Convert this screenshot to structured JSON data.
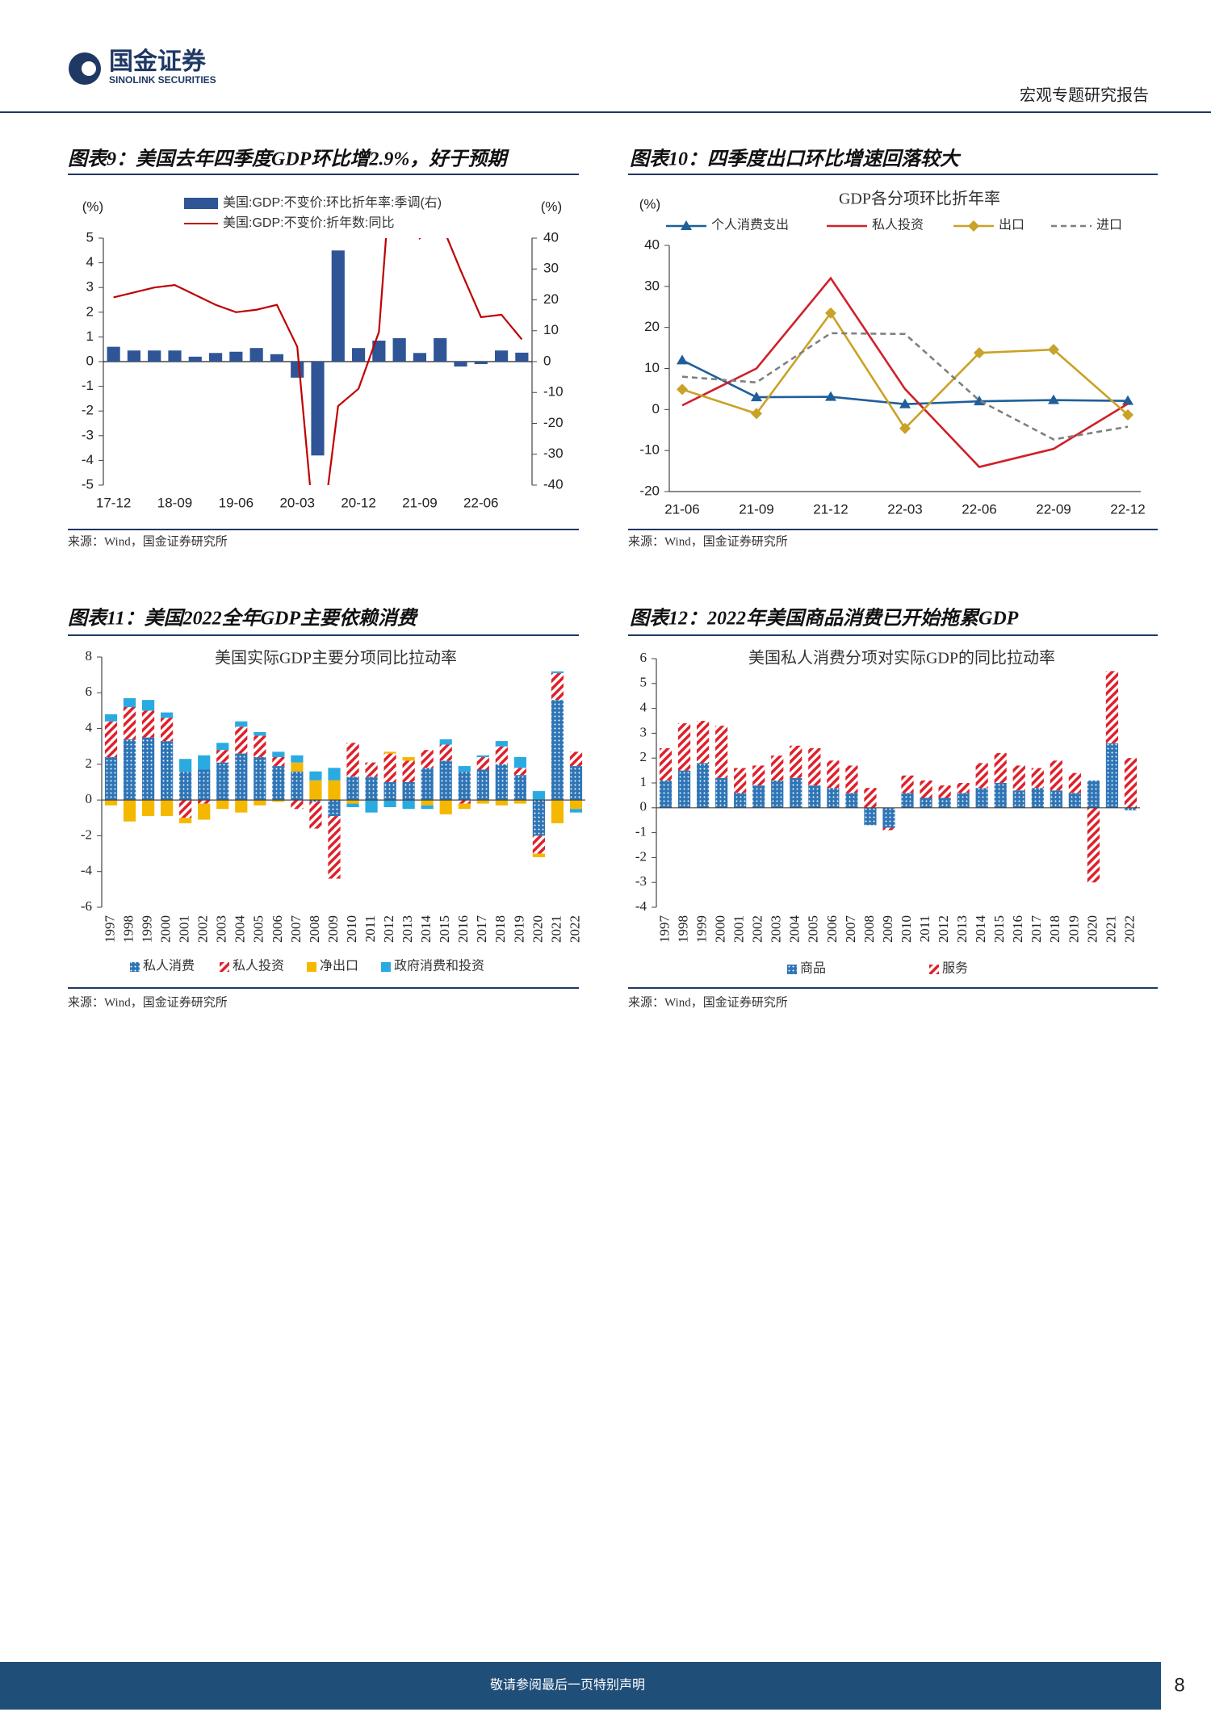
{
  "header": {
    "company_cn": "国金证券",
    "company_en": "SINOLINK SECURITIES",
    "report_type": "宏观专题研究报告"
  },
  "chart_data": [
    {
      "type": "combo",
      "title": "图表9：美国去年四季度GDP环比增2.9%，好于预期",
      "source": "来源：Wind，国金证券研究所",
      "ylabel": "(%)",
      "y2label": "(%)",
      "categories": [
        "17-12",
        null,
        null,
        "18-09",
        null,
        null,
        "19-06",
        null,
        null,
        "20-03",
        null,
        null,
        "20-12",
        null,
        null,
        "21-09",
        null,
        null,
        "22-06",
        null,
        null
      ],
      "ylim": [
        -5,
        5
      ],
      "yticks": [
        -5,
        -4,
        -3,
        -2,
        -1,
        0,
        1,
        2,
        3,
        4,
        5
      ],
      "y2lim": [
        -40,
        40
      ],
      "y2ticks": [
        -40,
        -30,
        -20,
        -10,
        0,
        10,
        20,
        30,
        40
      ],
      "grid": false,
      "series": [
        {
          "name": "美国:GDP:不变价:环比折年率:季调(右)",
          "type": "bar",
          "axis": "y2",
          "color": "#2f5597",
          "values": [
            4.8,
            3.6,
            3.6,
            3.6,
            1.6,
            2.8,
            3.2,
            4.4,
            2.4,
            -5.2,
            -30.4,
            36,
            4.4,
            6.8,
            7.6,
            2.8,
            7.6,
            -1.6,
            -0.8,
            3.6,
            2.9
          ]
        },
        {
          "name": "美国:GDP:不变价:折年数:同比",
          "type": "line",
          "color": "#c00000",
          "values": [
            2.6,
            2.8,
            3.0,
            3.1,
            2.7,
            2.3,
            2.0,
            2.1,
            2.3,
            0.6,
            -8.4,
            -1.8,
            -1.1,
            1.2,
            12.2,
            5.0,
            5.7,
            3.7,
            1.8,
            1.9,
            0.9
          ]
        }
      ]
    },
    {
      "type": "line",
      "title": "图表10：四季度出口环比增速回落较大",
      "subtitle": "GDP各分项环比折年率",
      "source": "来源：Wind，国金证券研究所",
      "ylabel": "(%)",
      "categories": [
        "21-06",
        "21-09",
        "21-12",
        "22-03",
        "22-06",
        "22-09",
        "22-12"
      ],
      "ylim": [
        -20,
        40
      ],
      "yticks": [
        -20,
        -10,
        0,
        10,
        20,
        30,
        40
      ],
      "grid": false,
      "series": [
        {
          "name": "个人消费支出",
          "color": "#1f5f99",
          "marker": "triangle",
          "dash": false,
          "values": [
            12.0,
            3.0,
            3.1,
            1.3,
            2.0,
            2.3,
            2.1
          ]
        },
        {
          "name": "私人投资",
          "color": "#d0202a",
          "marker": null,
          "dash": false,
          "values": [
            1.0,
            10.0,
            32.0,
            5.0,
            -14.0,
            -9.6,
            1.4
          ]
        },
        {
          "name": "出口",
          "color": "#c9a227",
          "marker": "diamond",
          "dash": false,
          "values": [
            4.9,
            -1.0,
            23.5,
            -4.6,
            13.8,
            14.6,
            -1.3
          ]
        },
        {
          "name": "进口",
          "color": "#7f7f7f",
          "marker": null,
          "dash": true,
          "values": [
            8.0,
            6.6,
            18.6,
            18.4,
            2.2,
            -7.3,
            -4.2
          ]
        }
      ]
    },
    {
      "type": "stacked-bar",
      "title": "图表11：美国2022全年GDP主要依赖消费",
      "subtitle": "美国实际GDP主要分项同比拉动率",
      "source": "来源：Wind，国金证券研究所",
      "categories": [
        "1997",
        "1998",
        "1999",
        "2000",
        "2001",
        "2002",
        "2003",
        "2004",
        "2005",
        "2006",
        "2007",
        "2008",
        "2009",
        "2010",
        "2011",
        "2012",
        "2013",
        "2014",
        "2015",
        "2016",
        "2017",
        "2018",
        "2019",
        "2020",
        "2021",
        "2022"
      ],
      "ylim": [
        -6,
        8
      ],
      "yticks": [
        -6,
        -4,
        -2,
        0,
        2,
        4,
        6,
        8
      ],
      "grid": false,
      "series": [
        {
          "name": "私人消费",
          "color": "#2e75b6",
          "pattern": "dots",
          "values": [
            2.4,
            3.4,
            3.5,
            3.3,
            1.6,
            1.7,
            2.1,
            2.6,
            2.4,
            1.9,
            1.6,
            -0.1,
            -0.9,
            1.3,
            1.3,
            1.0,
            1.0,
            1.8,
            2.2,
            1.6,
            1.7,
            2.0,
            1.4,
            -2.0,
            5.6,
            1.9
          ]
        },
        {
          "name": "私人投资",
          "color": "#e0202a",
          "pattern": "hatch",
          "values": [
            2.0,
            1.8,
            1.5,
            1.3,
            -1.0,
            -0.2,
            0.7,
            1.5,
            1.2,
            0.5,
            -0.5,
            -1.5,
            -3.5,
            1.9,
            0.8,
            1.6,
            1.2,
            1.0,
            0.9,
            -0.2,
            0.7,
            1.0,
            0.4,
            -1.0,
            1.5,
            0.8
          ]
        },
        {
          "name": "净出口",
          "color": "#f5b800",
          "pattern": "solid",
          "values": [
            -0.3,
            -1.2,
            -0.9,
            -0.9,
            -0.3,
            -0.9,
            -0.5,
            -0.7,
            -0.3,
            -0.1,
            0.5,
            1.1,
            1.1,
            -0.2,
            0.0,
            0.1,
            0.2,
            -0.3,
            -0.8,
            -0.3,
            -0.2,
            -0.3,
            -0.2,
            -0.2,
            -1.3,
            -0.5
          ]
        },
        {
          "name": "政府消费和投资",
          "color": "#29abe2",
          "pattern": "solid",
          "values": [
            0.4,
            0.5,
            0.6,
            0.3,
            0.7,
            0.8,
            0.4,
            0.3,
            0.2,
            0.3,
            0.4,
            0.5,
            0.7,
            -0.2,
            -0.7,
            -0.4,
            -0.5,
            -0.2,
            0.3,
            0.3,
            0.1,
            0.3,
            0.6,
            0.5,
            0.1,
            -0.2
          ]
        }
      ]
    },
    {
      "type": "stacked-bar",
      "title": "图表12：2022年美国商品消费已开始拖累GDP",
      "subtitle": "美国私人消费分项对实际GDP的同比拉动率",
      "source": "来源：Wind，国金证券研究所",
      "categories": [
        "1997",
        "1998",
        "1999",
        "2000",
        "2001",
        "2002",
        "2003",
        "2004",
        "2005",
        "2006",
        "2007",
        "2008",
        "2009",
        "2010",
        "2011",
        "2012",
        "2013",
        "2014",
        "2015",
        "2016",
        "2017",
        "2018",
        "2019",
        "2020",
        "2021",
        "2022"
      ],
      "ylim": [
        -4,
        6
      ],
      "yticks": [
        -4,
        -3,
        -2,
        -1,
        0,
        1,
        2,
        3,
        4,
        5,
        6
      ],
      "grid": false,
      "series": [
        {
          "name": "商品",
          "color": "#2e75b6",
          "pattern": "dots",
          "values": [
            1.1,
            1.5,
            1.8,
            1.2,
            0.6,
            0.9,
            1.1,
            1.2,
            0.9,
            0.8,
            0.6,
            -0.7,
            -0.8,
            0.6,
            0.4,
            0.4,
            0.6,
            0.8,
            1.0,
            0.7,
            0.8,
            0.7,
            0.6,
            1.1,
            2.6,
            -0.1
          ]
        },
        {
          "name": "服务",
          "color": "#e0202a",
          "pattern": "hatch",
          "values": [
            1.3,
            1.9,
            1.7,
            2.1,
            1.0,
            0.8,
            1.0,
            1.3,
            1.5,
            1.1,
            1.1,
            0.8,
            -0.1,
            0.7,
            0.7,
            0.5,
            0.4,
            1.0,
            1.2,
            1.0,
            0.8,
            1.2,
            0.8,
            -3.0,
            2.9,
            2.0
          ]
        }
      ]
    }
  ],
  "footer": {
    "disclaimer": "敬请参阅最后一页特别声明",
    "page_number": 8
  }
}
